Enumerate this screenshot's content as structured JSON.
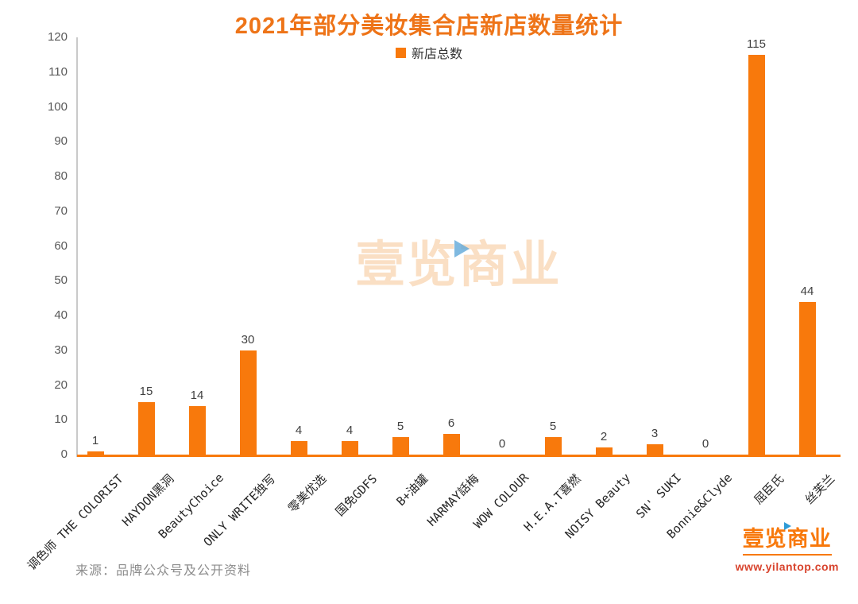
{
  "chart_data": {
    "type": "bar",
    "title": "2021年部分美妆集合店新店数量统计",
    "legend": [
      "新店总数"
    ],
    "legend_position": "top-center",
    "categories": [
      "调色师 THE COLORIST",
      "HAYDON黑洞",
      "BeautyChoice",
      "ONLY WRITE独写",
      "零美优选",
      "国免GDFS",
      "B+油罐",
      "HARMAY話梅",
      "WOW COLOUR",
      "H.E.A.T喜燃",
      "NOISY Beauty",
      "SN' SUKI",
      "Bonnie&Clyde",
      "屈臣氏",
      "丝芙兰"
    ],
    "values": [
      1,
      15,
      14,
      30,
      4,
      4,
      5,
      6,
      0,
      5,
      2,
      3,
      0,
      115,
      44
    ],
    "xlabel": "",
    "ylabel": "",
    "ylim": [
      0,
      120
    ],
    "ytick_step": 10,
    "grid": false,
    "bar_color": "#F8790C",
    "x_axis_color": "#F8790C",
    "y_axis_color": "#C9C9C9",
    "title_color": "#EE7418"
  },
  "watermark": {
    "text_left": "壹览",
    "text_right": "商业",
    "icon": "play-icon",
    "color": "#FADFC4",
    "icon_color": "#5FA8D8"
  },
  "footer": {
    "source": "来源：品牌公众号及公开资料",
    "brand": {
      "name_left": "壹览",
      "name_right": "商业",
      "icon": "play-icon",
      "url": "www.yilantop.com",
      "name_color": "#F8790C",
      "url_color": "#D8442E"
    }
  }
}
